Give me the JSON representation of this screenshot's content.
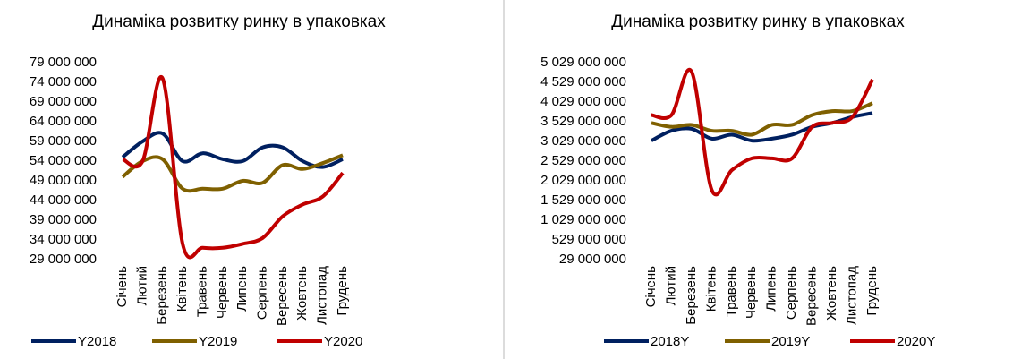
{
  "chart_data": [
    {
      "type": "line",
      "title": "Динаміка розвитку ринку в упаковках",
      "categories": [
        "Січень",
        "Лютий",
        "Березень",
        "Квітень",
        "Травень",
        "Червень",
        "Липень",
        "Серпень",
        "Вересень",
        "Жовтень",
        "Листопад",
        "Грудень"
      ],
      "ylim": [
        29000000,
        79000000
      ],
      "yticks": [
        {
          "value": 29000000,
          "label": "29 000 000"
        },
        {
          "value": 34000000,
          "label": "34 000 000"
        },
        {
          "value": 39000000,
          "label": "39 000 000"
        },
        {
          "value": 44000000,
          "label": "44 000 000"
        },
        {
          "value": 49000000,
          "label": "49 000 000"
        },
        {
          "value": 54000000,
          "label": "54 000 000"
        },
        {
          "value": 59000000,
          "label": "59 000 000"
        },
        {
          "value": 64000000,
          "label": "64 000 000"
        },
        {
          "value": 69000000,
          "label": "69 000 000"
        },
        {
          "value": 74000000,
          "label": "74 000 000"
        },
        {
          "value": 79000000,
          "label": "79 000 000"
        }
      ],
      "legend": "bottom",
      "series": [
        {
          "name": "Y2018",
          "color": "#002060",
          "values": [
            55000000,
            59000000,
            61000000,
            54000000,
            56000000,
            54500000,
            54000000,
            57500000,
            57500000,
            54000000,
            52500000,
            54500000
          ]
        },
        {
          "name": "Y2019",
          "color": "#7f6000",
          "values": [
            50000000,
            54000000,
            54500000,
            47000000,
            47000000,
            47000000,
            49000000,
            48500000,
            53000000,
            52000000,
            53500000,
            55500000
          ]
        },
        {
          "name": "Y2020",
          "color": "#c00000",
          "values": [
            54500000,
            54000000,
            75000000,
            33000000,
            32000000,
            32000000,
            33000000,
            34500000,
            40000000,
            43000000,
            45000000,
            51000000
          ]
        }
      ]
    },
    {
      "type": "line",
      "title": "Динаміка розвитку ринку в упаковках",
      "categories": [
        "Січень",
        "Лютий",
        "Березень",
        "Квітень",
        "Травень",
        "Червень",
        "Липень",
        "Серпень",
        "Вересень",
        "Жовтень",
        "Листопад",
        "Грудень"
      ],
      "ylim": [
        29000000,
        5029000000
      ],
      "yticks": [
        {
          "value": 29000000,
          "label": "29 000 000"
        },
        {
          "value": 529000000,
          "label": "529 000 000"
        },
        {
          "value": 1029000000,
          "label": "1 029 000 000"
        },
        {
          "value": 1529000000,
          "label": "1 529 000 000"
        },
        {
          "value": 2029000000,
          "label": "2 029 000 000"
        },
        {
          "value": 2529000000,
          "label": "2 529 000 000"
        },
        {
          "value": 3029000000,
          "label": "3 029 000 000"
        },
        {
          "value": 3529000000,
          "label": "3 529 000 000"
        },
        {
          "value": 4029000000,
          "label": "4 029 000 000"
        },
        {
          "value": 4529000000,
          "label": "4 529 000 000"
        },
        {
          "value": 5029000000,
          "label": "5 029 000 000"
        }
      ],
      "legend": "bottom",
      "series": [
        {
          "name": "2018Y",
          "color": "#002060",
          "values": [
            3050000000,
            3300000000,
            3350000000,
            3100000000,
            3200000000,
            3050000000,
            3100000000,
            3200000000,
            3400000000,
            3500000000,
            3650000000,
            3750000000
          ]
        },
        {
          "name": "2019Y",
          "color": "#7f6000",
          "values": [
            3500000000,
            3400000000,
            3450000000,
            3300000000,
            3300000000,
            3200000000,
            3450000000,
            3450000000,
            3700000000,
            3800000000,
            3800000000,
            4000000000
          ]
        },
        {
          "name": "2020Y",
          "color": "#c00000",
          "values": [
            3700000000,
            3700000000,
            4800000000,
            1800000000,
            2300000000,
            2600000000,
            2600000000,
            2600000000,
            3400000000,
            3500000000,
            3650000000,
            4600000000
          ]
        }
      ]
    }
  ]
}
